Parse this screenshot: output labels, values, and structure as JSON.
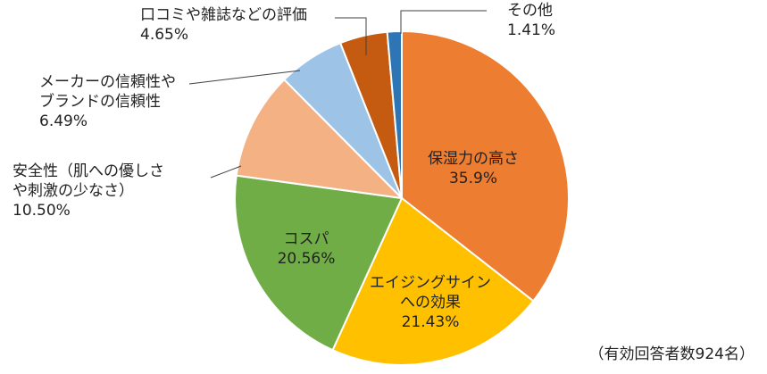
{
  "chart_data": {
    "type": "pie",
    "start_angle_deg": 0,
    "direction": "clockwise",
    "slices": [
      {
        "name": "保湿力の高さ",
        "value": 35.9,
        "value_label": "35.9%",
        "label_lines": [
          "保湿力の高さ"
        ],
        "color": "#ED7D31"
      },
      {
        "name": "エイジングサインへの効果",
        "value": 21.43,
        "value_label": "21.43%",
        "label_lines": [
          "エイジングサイン",
          "への効果"
        ],
        "color": "#FFC000"
      },
      {
        "name": "コスパ",
        "value": 20.56,
        "value_label": "20.56%",
        "label_lines": [
          "コスパ"
        ],
        "color": "#70AD47"
      },
      {
        "name": "安全性（肌への優しさや刺激の少なさ）",
        "value": 10.5,
        "value_label": "10.50%",
        "label_lines": [
          "安全性（肌への優しさ",
          "や刺激の少なさ）"
        ],
        "color": "#F4B183"
      },
      {
        "name": "メーカーの信頼性やブランドの信頼性",
        "value": 6.49,
        "value_label": "6.49%",
        "label_lines": [
          "メーカーの信頼性や",
          "ブランドの信頼性"
        ],
        "color": "#9DC3E6"
      },
      {
        "name": "口コミや雑誌などの評価",
        "value": 4.65,
        "value_label": "4.65%",
        "label_lines": [
          "口コミや雑誌などの評価"
        ],
        "color": "#C55A11"
      },
      {
        "name": "その他",
        "value": 1.41,
        "value_label": "1.41%",
        "label_lines": [
          "その他"
        ],
        "color": "#2E75B6"
      }
    ]
  },
  "note": "（有効回答者数924名）"
}
